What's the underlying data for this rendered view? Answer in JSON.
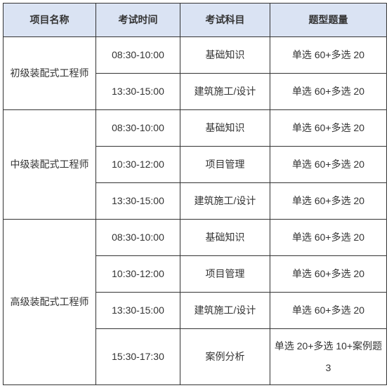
{
  "table": {
    "headers": [
      "项目名称",
      "考试时间",
      "考试科目",
      "题型题量"
    ],
    "groups": [
      {
        "name": "初级装配式工程师",
        "rows": [
          {
            "time": "08:30-10:00",
            "subject": "基础知识",
            "format": "单选 60+多选 20"
          },
          {
            "time": "13:30-15:00",
            "subject": "建筑施工/设计",
            "format": "单选 60+多选 20"
          }
        ]
      },
      {
        "name": "中级装配式工程师",
        "rows": [
          {
            "time": "08:30-10:00",
            "subject": "基础知识",
            "format": "单选 60+多选 20"
          },
          {
            "time": "10:30-12:00",
            "subject": "项目管理",
            "format": "单选 60+多选 20"
          },
          {
            "time": "13:30-15:00",
            "subject": "建筑施工/设计",
            "format": "单选 60+多选 20"
          }
        ]
      },
      {
        "name": "高级装配式工程师",
        "rows": [
          {
            "time": "08:30-10:00",
            "subject": "基础知识",
            "format": "单选 60+多选 20"
          },
          {
            "time": "10:30-12:00",
            "subject": "项目管理",
            "format": "单选 60+多选 20"
          },
          {
            "time": "13:30-15:00",
            "subject": "建筑施工/设计",
            "format": "单选 60+多选 20"
          },
          {
            "time": "15:30-17:30",
            "subject": "案例分析",
            "format": "单选 20+多选 10+案例题 3",
            "tall": true
          }
        ]
      }
    ],
    "colors": {
      "header_bg": "#dae3f3",
      "border": "#333333",
      "text": "#333333",
      "background": "#ffffff"
    }
  }
}
